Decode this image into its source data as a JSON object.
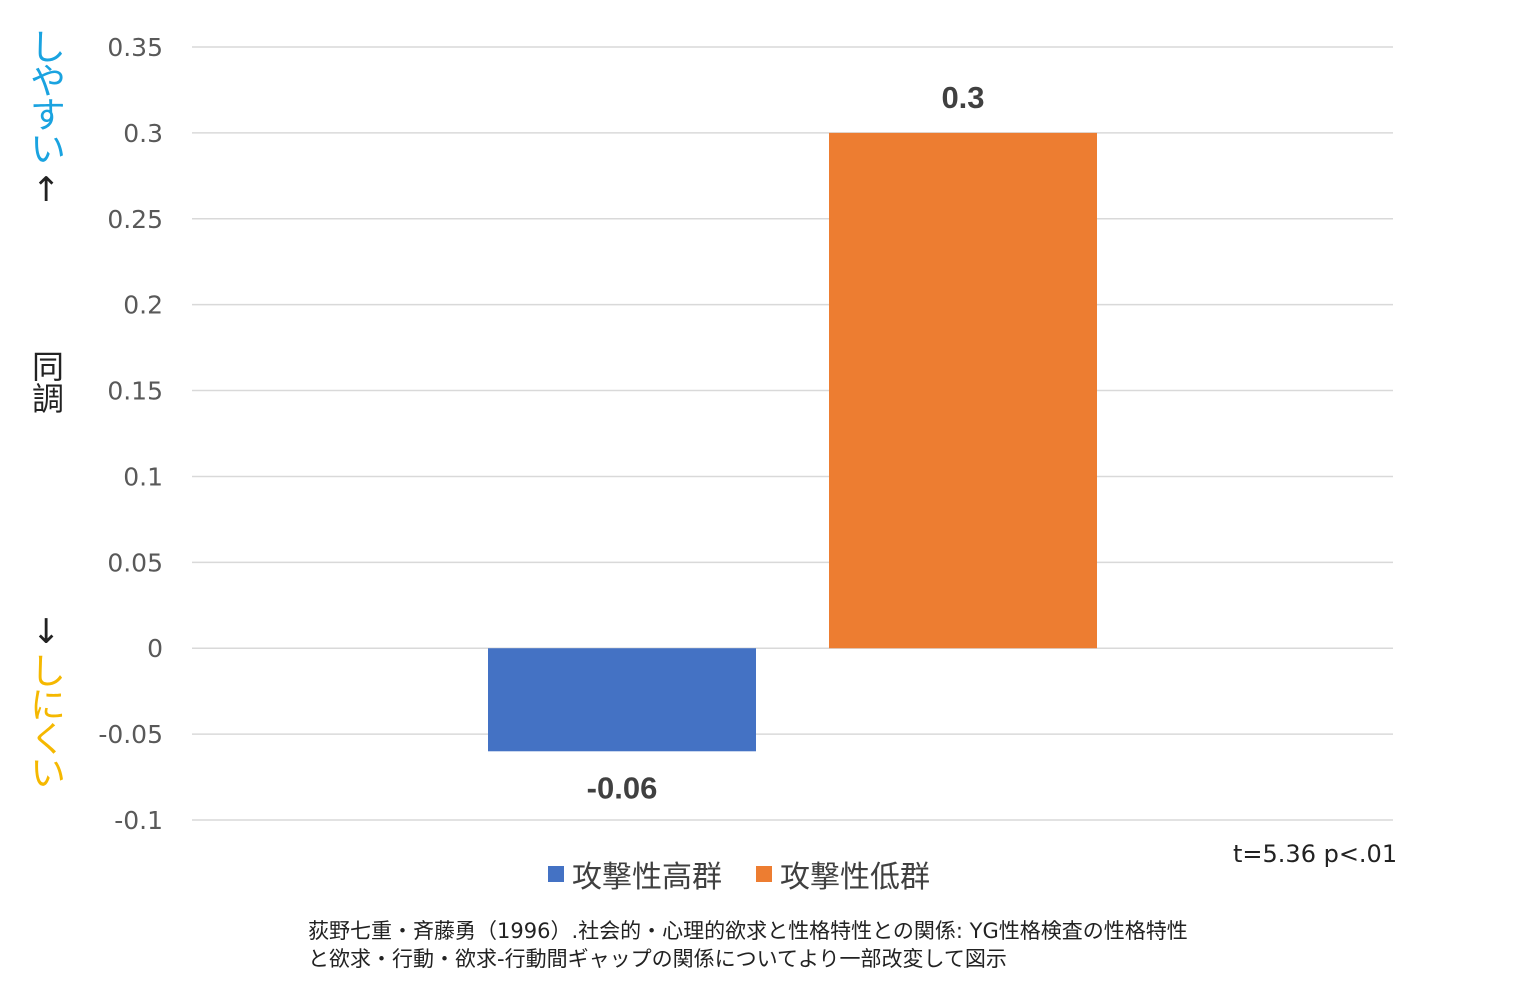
{
  "y_axis_label": {
    "top": "しやすい",
    "top_arrow": "↑",
    "middle": "同調",
    "bottom_arrow": "↓",
    "bottom": "しにくい",
    "top_color": "#1aa3e0",
    "bottom_color": "#f5b800"
  },
  "stats_text": "t=5.36 p<.01",
  "source_lines": [
    "荻野七重・斉藤勇（1996）.社会的・心理的欲求と性格特性との関係: YG性格検査の性格特性",
    "と欲求・行動・欲求-行動間ギャップの関係についてより一部改変して図示"
  ],
  "chart_data": {
    "type": "bar",
    "categories": [
      "攻撃性高群",
      "攻撃性低群"
    ],
    "values": [
      -0.06,
      0.3
    ],
    "data_labels": [
      "-0.06",
      "0.3"
    ],
    "colors": [
      "#4472c4",
      "#ed7d31"
    ],
    "ylim": [
      -0.1,
      0.35
    ],
    "yticks": [
      0.35,
      0.3,
      0.25,
      0.2,
      0.15,
      0.1,
      0.05,
      0,
      -0.05,
      -0.1
    ],
    "ytick_labels": [
      "0.35",
      "0.3",
      "0.25",
      "0.2",
      "0.15",
      "0.1",
      "0.05",
      "0",
      "-0.05",
      "-0.1"
    ],
    "grid": true,
    "legend_position": "bottom",
    "gridline_color": "#d9d9d9"
  }
}
